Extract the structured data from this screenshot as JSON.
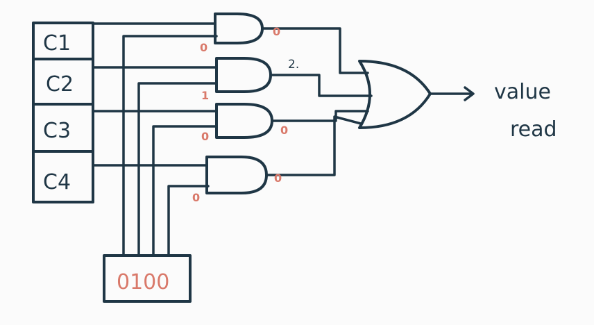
{
  "colors": {
    "ink": "#1f3645",
    "bit_marks": "#d9796a",
    "background": "#fbfbfb"
  },
  "registers": [
    "C1",
    "C2",
    "C3",
    "C4"
  ],
  "select_value": "0100",
  "and_gates": [
    {
      "output_mark": "0",
      "select_mark": "0"
    },
    {
      "output_mark": "2.",
      "select_mark": "1"
    },
    {
      "output_mark": "0",
      "select_mark": "0"
    },
    {
      "output_mark": "0",
      "select_mark": "0"
    }
  ],
  "output_label": {
    "line1": "value",
    "line2": "read"
  }
}
